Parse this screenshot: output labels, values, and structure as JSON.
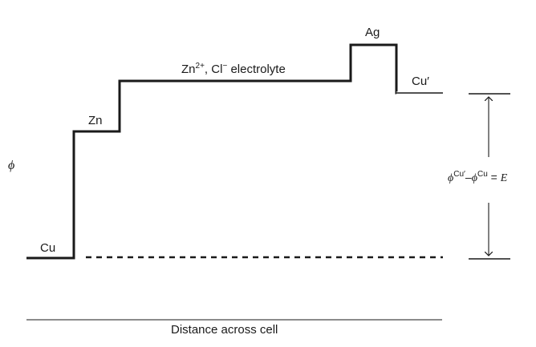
{
  "labels": {
    "cu": "Cu",
    "zn": "Zn",
    "electrolyte": {
      "species_1": "Zn",
      "charge_1": "2+",
      "separator": ", ",
      "species_2": "Cl",
      "charge_2": "−",
      "rest": " electrolyte"
    },
    "ag": "Ag",
    "cu_prime": "Cu′",
    "phi_axis": "ϕ",
    "emf": {
      "phi_1": "ϕ",
      "sup_1": "Cu′",
      "minus": "–",
      "phi_2": "ϕ",
      "sup_2": "Cu",
      "equals": " = ",
      "e": "E"
    },
    "x_axis": "Distance across cell"
  }
}
